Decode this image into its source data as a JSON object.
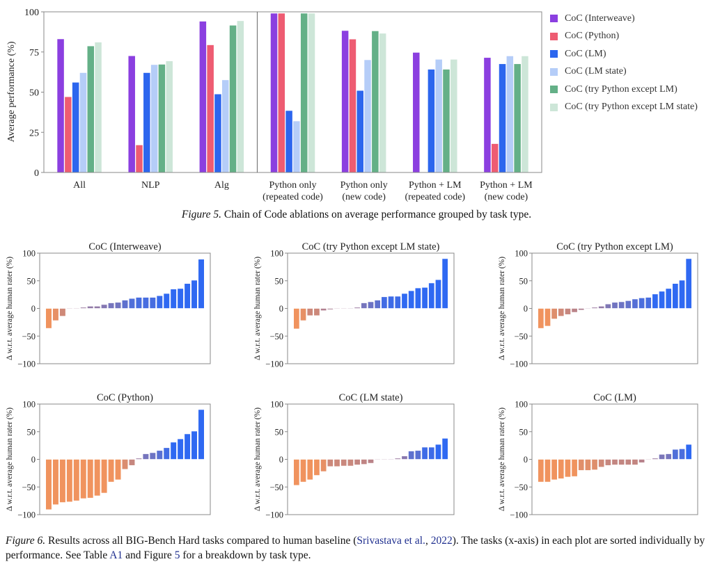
{
  "figure5": {
    "caption_label": "Figure 5.",
    "caption_text": " Chain of Code ablations on average performance grouped by task type."
  },
  "figure6": {
    "caption_label": "Figure 6.",
    "caption_part1": " Results across all BIG-Bench Hard tasks compared to human baseline (",
    "caption_link1": "Srivastava et al.",
    "caption_part2": ", ",
    "caption_link2": "2022",
    "caption_part3": "). The tasks (x-axis) in each plot are sorted individually by performance. See Table ",
    "caption_link3": "A1",
    "caption_part4": " and Figure ",
    "caption_link4": "5",
    "caption_part5": " for a breakdown by task type."
  },
  "chart_data": [
    {
      "type": "bar",
      "title": "",
      "xlabel": "",
      "ylabel": "Average performance (%)",
      "ylim": [
        0,
        100
      ],
      "yticks": [
        0,
        25,
        50,
        75,
        100
      ],
      "legend_position": "right-outside",
      "categories": [
        "All",
        "NLP",
        "Alg",
        "Python only\n(repeated code)",
        "Python only\n(new code)",
        "Python + LM\n(repeated code)",
        "Python + LM\n(new code)"
      ],
      "divider_after_category": "Alg",
      "series": [
        {
          "name": "CoC (Interweave)",
          "color": "#8b3fe0",
          "values": [
            83,
            72.5,
            94,
            99,
            88.2,
            74.6,
            71.4
          ]
        },
        {
          "name": "CoC (Python)",
          "color": "#ee5c72",
          "values": [
            47,
            17,
            79.3,
            99,
            82.9,
            0,
            17.8
          ]
        },
        {
          "name": "CoC (LM)",
          "color": "#2c66ee",
          "values": [
            56,
            62,
            48.7,
            38.4,
            50.9,
            64.1,
            67.5
          ]
        },
        {
          "name": "CoC (LM state)",
          "color": "#b5cdf8",
          "values": [
            62,
            67,
            57.5,
            31.9,
            70,
            70.3,
            72.4
          ]
        },
        {
          "name": "CoC (try Python except LM)",
          "color": "#64b087",
          "values": [
            78.6,
            67.2,
            91.5,
            99,
            88,
            64.1,
            67.5
          ]
        },
        {
          "name": "CoC (try Python except LM state)",
          "color": "#cde6d8",
          "values": [
            81,
            69.3,
            94.3,
            99,
            86.5,
            70.3,
            72.4
          ]
        }
      ]
    },
    {
      "type": "bar",
      "title": "CoC (Interweave)",
      "ylabel": "Δ w.r.t. average human rater (%)",
      "ylim": [
        -100,
        100
      ],
      "yticks": [
        -100,
        -50,
        0,
        50,
        100
      ],
      "values": [
        -36,
        -22,
        -14,
        -1,
        0,
        2,
        4,
        4,
        7,
        10,
        11,
        15,
        18,
        20,
        20,
        20,
        23,
        27,
        35,
        36,
        45,
        51,
        89
      ]
    },
    {
      "type": "bar",
      "title": "CoC (try Python except LM state)",
      "ylabel": "Δ w.r.t. average human rater (%)",
      "ylim": [
        -100,
        100
      ],
      "yticks": [
        -100,
        -50,
        0,
        50,
        100
      ],
      "values": [
        -37,
        -22,
        -13,
        -13,
        -4,
        -2,
        -1,
        0,
        1,
        2,
        10,
        12,
        15,
        21,
        22,
        22,
        27,
        32,
        37,
        38,
        46,
        52,
        90
      ]
    },
    {
      "type": "bar",
      "title": "CoC (try Python except LM)",
      "ylabel": "Δ w.r.t. average human rater (%)",
      "ylim": [
        -100,
        100
      ],
      "yticks": [
        -100,
        -50,
        0,
        50,
        100
      ],
      "values": [
        -36,
        -32,
        -19,
        -14,
        -11,
        -7,
        -3,
        1,
        2,
        4,
        8,
        11,
        12,
        14,
        17,
        19,
        20,
        26,
        31,
        36,
        45,
        51,
        90
      ]
    },
    {
      "type": "bar",
      "title": "CoC (Python)",
      "ylabel": "Δ w.r.t. average human rater (%)",
      "ylim": [
        -100,
        100
      ],
      "yticks": [
        -100,
        -50,
        0,
        50,
        100
      ],
      "values": [
        -91,
        -82,
        -78,
        -77,
        -75,
        -71,
        -70,
        -66,
        -61,
        -41,
        -37,
        -18,
        -11,
        2,
        10,
        12,
        16,
        21,
        31,
        37,
        46,
        51,
        90
      ]
    },
    {
      "type": "bar",
      "title": "CoC (LM state)",
      "ylabel": "Δ w.r.t. average human rater (%)",
      "ylim": [
        -100,
        100
      ],
      "yticks": [
        -100,
        -50,
        0,
        50,
        100
      ],
      "values": [
        -47,
        -41,
        -37,
        -29,
        -22,
        -13,
        -13,
        -12,
        -12,
        -10,
        -9,
        -7,
        -1,
        0,
        1,
        2,
        6,
        15,
        16,
        22,
        22,
        27,
        38
      ]
    },
    {
      "type": "bar",
      "title": "CoC (LM)",
      "ylabel": "Δ w.r.t. average human rater (%)",
      "ylim": [
        -100,
        100
      ],
      "yticks": [
        -100,
        -50,
        0,
        50,
        100
      ],
      "values": [
        -41,
        -41,
        -37,
        -35,
        -32,
        -31,
        -20,
        -20,
        -19,
        -14,
        -11,
        -10,
        -10,
        -10,
        -10,
        -6,
        -1,
        2,
        9,
        10,
        18,
        19,
        27
      ]
    }
  ],
  "diverging_colors": {
    "negative": "#f0935e",
    "neutral": "#a57d99",
    "positive": "#2f69f2"
  }
}
